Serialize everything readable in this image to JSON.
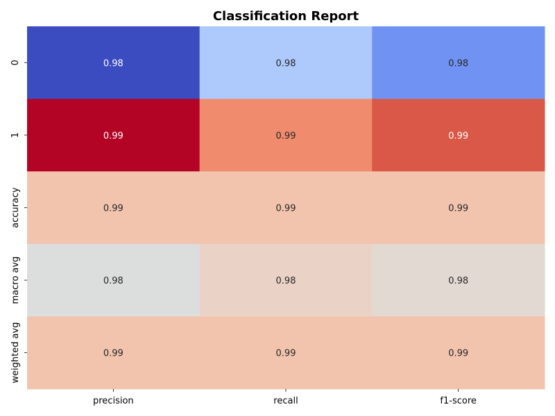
{
  "chart_data": {
    "type": "heatmap",
    "title": "Classification Report",
    "xlabel": "",
    "ylabel": "",
    "columns": [
      "precision",
      "recall",
      "f1-score"
    ],
    "rows": [
      "0",
      "1",
      "accuracy",
      "macro avg",
      "weighted avg"
    ],
    "values": [
      [
        0.98,
        0.98,
        0.98
      ],
      [
        0.99,
        0.99,
        0.99
      ],
      [
        0.99,
        0.99,
        0.99
      ],
      [
        0.98,
        0.98,
        0.98
      ],
      [
        0.99,
        0.99,
        0.99
      ]
    ],
    "value_labels": [
      [
        "0.98",
        "0.98",
        "0.98"
      ],
      [
        "0.99",
        "0.99",
        "0.99"
      ],
      [
        "0.99",
        "0.99",
        "0.99"
      ],
      [
        "0.98",
        "0.98",
        "0.98"
      ],
      [
        "0.99",
        "0.99",
        "0.99"
      ]
    ],
    "cell_colors": [
      [
        "#3b4cc0",
        "#aec9fc",
        "#7093f3"
      ],
      [
        "#b40426",
        "#f08b6e",
        "#d95847"
      ],
      [
        "#f2c4ae",
        "#f2c4ae",
        "#f2c4ae"
      ],
      [
        "#dcdddd",
        "#ead3c6",
        "#e3d9d3"
      ],
      [
        "#f2c4ae",
        "#f2c4ae",
        "#f2c4ae"
      ]
    ],
    "colormap": "coolwarm",
    "colorbar": false,
    "grid": false,
    "legend": "none"
  }
}
